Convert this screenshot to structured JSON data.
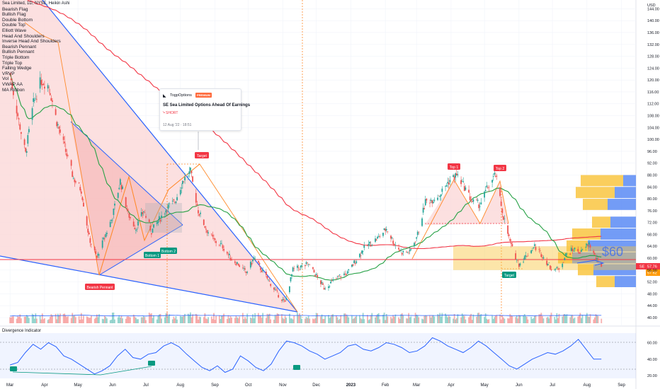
{
  "header": {
    "symbol_line": "Sea Limited, 1D, NYSE, Heikin Ashi",
    "currency": "USD"
  },
  "indicators": [
    "Bearish Flag",
    "Bullish Flag",
    "Double Bottom",
    "Double Top",
    "Elliott Wave",
    "Head And Shoulders",
    "Inverse Head And Shoulders",
    "Bearish Pennant",
    "Bullish Pennant",
    "Triple Bottom",
    "Triple Top",
    "Falling Wedge",
    "VRVP",
    "Vol",
    "VWAP AA",
    "MA Ribbon"
  ],
  "idea_card": {
    "author": "TogpOptions",
    "badge": "PREMIUM",
    "title": "SE Sea Limited Options Ahead Of Earnings",
    "position": "SHORT",
    "date": "12 Aug '22 · 18:51"
  },
  "annotations": {
    "bearish_pennant": "Bearish Pennant",
    "bottom1": "Bottom 1",
    "bottom2": "Bottom 2",
    "target1": "Target",
    "top1": "Top 1",
    "top2": "Top 2",
    "target2": "Target",
    "price_note": "$60",
    "pane_label": "Divergence Indicator"
  },
  "price_tags": {
    "ticker": "SE",
    "last": "57.76",
    "prev": "57.62"
  },
  "colors": {
    "up": "#26a69a",
    "down": "#ef5350",
    "accent_blue": "#2962ff",
    "ma_green": "#26a145",
    "ma_red": "#f23645",
    "wedge_fill": "#f7c6c6",
    "osc": "#2962ff",
    "vp_up": "#f9c641",
    "vp_down": "#5b8bf5"
  },
  "chart_data": {
    "type": "candlestick",
    "price_axis": {
      "ticks": [
        40,
        44,
        48,
        52,
        56,
        60,
        64,
        68,
        72,
        76,
        80,
        84,
        88,
        92,
        96,
        100,
        104,
        108,
        112,
        116,
        120,
        124,
        128,
        132,
        136,
        140,
        144
      ],
      "range": [
        40,
        146
      ]
    },
    "time_axis": {
      "labels": [
        "Mar",
        "Apr",
        "May",
        "Jun",
        "Jul",
        "Aug",
        "Sep",
        "Oct",
        "Nov",
        "Dec",
        "2023",
        "Feb",
        "Mar",
        "Apr",
        "May",
        "Jun",
        "Jul",
        "Aug",
        "Sep"
      ]
    },
    "price_path": [
      {
        "date": "2022-03-01",
        "price": 122
      },
      {
        "date": "2022-03-08",
        "price": 108
      },
      {
        "date": "2022-03-15",
        "price": 95
      },
      {
        "date": "2022-03-22",
        "price": 112
      },
      {
        "date": "2022-03-29",
        "price": 120
      },
      {
        "date": "2022-04-05",
        "price": 118
      },
      {
        "date": "2022-04-12",
        "price": 106
      },
      {
        "date": "2022-04-20",
        "price": 96
      },
      {
        "date": "2022-04-27",
        "price": 87
      },
      {
        "date": "2022-05-04",
        "price": 83
      },
      {
        "date": "2022-05-11",
        "price": 67
      },
      {
        "date": "2022-05-18",
        "price": 60
      },
      {
        "date": "2022-05-25",
        "price": 67
      },
      {
        "date": "2022-06-01",
        "price": 74
      },
      {
        "date": "2022-06-08",
        "price": 86
      },
      {
        "date": "2022-06-15",
        "price": 75
      },
      {
        "date": "2022-06-22",
        "price": 70
      },
      {
        "date": "2022-06-29",
        "price": 76
      },
      {
        "date": "2022-07-06",
        "price": 69
      },
      {
        "date": "2022-07-13",
        "price": 73
      },
      {
        "date": "2022-07-20",
        "price": 77
      },
      {
        "date": "2022-07-27",
        "price": 79
      },
      {
        "date": "2022-08-03",
        "price": 86
      },
      {
        "date": "2022-08-10",
        "price": 89
      },
      {
        "date": "2022-08-17",
        "price": 76
      },
      {
        "date": "2022-08-24",
        "price": 70
      },
      {
        "date": "2022-08-31",
        "price": 66
      },
      {
        "date": "2022-09-08",
        "price": 64
      },
      {
        "date": "2022-09-15",
        "price": 60
      },
      {
        "date": "2022-09-22",
        "price": 58
      },
      {
        "date": "2022-09-29",
        "price": 55
      },
      {
        "date": "2022-10-06",
        "price": 60
      },
      {
        "date": "2022-10-13",
        "price": 56
      },
      {
        "date": "2022-10-20",
        "price": 52
      },
      {
        "date": "2022-10-27",
        "price": 48
      },
      {
        "date": "2022-11-03",
        "price": 45
      },
      {
        "date": "2022-11-10",
        "price": 56
      },
      {
        "date": "2022-11-17",
        "price": 57
      },
      {
        "date": "2022-11-24",
        "price": 58
      },
      {
        "date": "2022-12-01",
        "price": 54
      },
      {
        "date": "2022-12-08",
        "price": 50
      },
      {
        "date": "2022-12-15",
        "price": 52
      },
      {
        "date": "2022-12-22",
        "price": 54
      },
      {
        "date": "2022-12-29",
        "price": 55
      },
      {
        "date": "2023-01-05",
        "price": 59
      },
      {
        "date": "2023-01-12",
        "price": 63
      },
      {
        "date": "2023-01-19",
        "price": 65
      },
      {
        "date": "2023-01-26",
        "price": 67
      },
      {
        "date": "2023-02-02",
        "price": 70
      },
      {
        "date": "2023-02-09",
        "price": 65
      },
      {
        "date": "2023-02-16",
        "price": 62
      },
      {
        "date": "2023-02-23",
        "price": 62
      },
      {
        "date": "2023-03-02",
        "price": 68
      },
      {
        "date": "2023-03-09",
        "price": 79
      },
      {
        "date": "2023-03-16",
        "price": 80
      },
      {
        "date": "2023-03-23",
        "price": 82
      },
      {
        "date": "2023-03-30",
        "price": 86
      },
      {
        "date": "2023-04-06",
        "price": 88
      },
      {
        "date": "2023-04-13",
        "price": 84
      },
      {
        "date": "2023-04-20",
        "price": 79
      },
      {
        "date": "2023-04-27",
        "price": 78
      },
      {
        "date": "2023-05-04",
        "price": 84
      },
      {
        "date": "2023-05-11",
        "price": 88
      },
      {
        "date": "2023-05-18",
        "price": 74
      },
      {
        "date": "2023-05-25",
        "price": 64
      },
      {
        "date": "2023-06-01",
        "price": 58
      },
      {
        "date": "2023-06-08",
        "price": 61
      },
      {
        "date": "2023-06-15",
        "price": 64
      },
      {
        "date": "2023-06-22",
        "price": 61
      },
      {
        "date": "2023-06-29",
        "price": 57
      },
      {
        "date": "2023-07-06",
        "price": 56
      },
      {
        "date": "2023-07-13",
        "price": 61
      },
      {
        "date": "2023-07-20",
        "price": 63
      },
      {
        "date": "2023-07-27",
        "price": 62
      },
      {
        "date": "2023-08-03",
        "price": 65
      },
      {
        "date": "2023-08-10",
        "price": 59
      },
      {
        "date": "2023-08-14",
        "price": 57.76
      }
    ],
    "oscillator_axis": {
      "ticks": [
        20,
        40,
        60
      ],
      "range": [
        15,
        75
      ]
    },
    "oscillator": [
      33,
      36,
      48,
      58,
      52,
      60,
      55,
      44,
      40,
      34,
      28,
      22,
      26,
      32,
      44,
      52,
      42,
      40,
      46,
      48,
      56,
      60,
      55,
      46,
      38,
      30,
      26,
      32,
      24,
      28,
      44,
      38,
      30,
      26,
      34,
      50,
      62,
      60,
      56,
      50,
      46,
      40,
      44,
      48,
      56,
      58,
      52,
      50,
      54,
      60,
      58,
      54,
      48,
      50,
      56,
      66,
      62,
      56,
      52,
      48,
      54,
      62,
      56,
      48,
      40,
      32,
      28,
      34,
      40,
      44,
      48,
      46,
      50,
      56,
      64,
      52,
      40,
      40
    ]
  }
}
